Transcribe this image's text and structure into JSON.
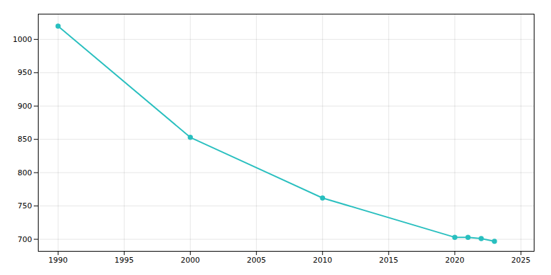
{
  "chart_data": {
    "type": "line",
    "x": [
      1990,
      2000,
      2010,
      2020,
      2021,
      2022,
      2023
    ],
    "values": [
      1020,
      853,
      762,
      703,
      703,
      701,
      697
    ],
    "color": "#29BFBF",
    "marker": "circle",
    "xlim": [
      1988.5,
      2026
    ],
    "ylim": [
      682,
      1038
    ],
    "xticks": [
      1990,
      1995,
      2000,
      2005,
      2010,
      2015,
      2020,
      2025
    ],
    "yticks": [
      700,
      750,
      800,
      850,
      900,
      950,
      1000
    ],
    "grid": true
  }
}
